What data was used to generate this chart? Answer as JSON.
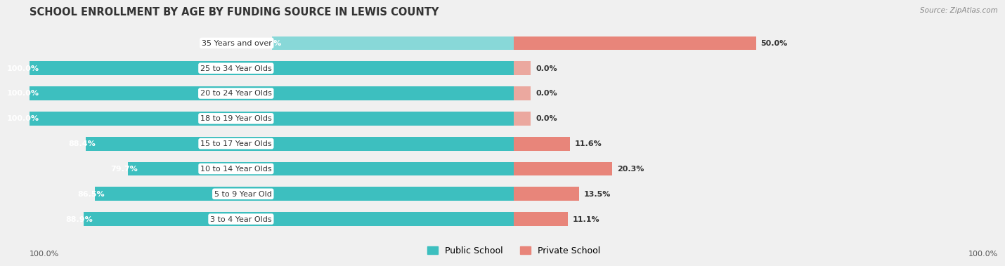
{
  "title": "SCHOOL ENROLLMENT BY AGE BY FUNDING SOURCE IN LEWIS COUNTY",
  "source": "Source: ZipAtlas.com",
  "categories": [
    "3 to 4 Year Olds",
    "5 to 9 Year Old",
    "10 to 14 Year Olds",
    "15 to 17 Year Olds",
    "18 to 19 Year Olds",
    "20 to 24 Year Olds",
    "25 to 34 Year Olds",
    "35 Years and over"
  ],
  "public": [
    88.9,
    86.5,
    79.7,
    88.4,
    100.0,
    100.0,
    100.0,
    50.0
  ],
  "private": [
    11.1,
    13.5,
    20.3,
    11.6,
    0.0,
    0.0,
    0.0,
    50.0
  ],
  "public_color": "#3DBFBF",
  "public_color_light": "#88D8D8",
  "private_color": "#E8857A",
  "private_color_light": "#EBA89F",
  "public_label": "Public School",
  "private_label": "Private School",
  "bg_color": "#f0f0f0",
  "row_bg_odd": "#e8e8e8",
  "row_bg_even": "#f2f2f2",
  "title_fontsize": 10.5,
  "bar_label_fontsize": 8,
  "cat_label_fontsize": 8,
  "axis_fontsize": 8
}
